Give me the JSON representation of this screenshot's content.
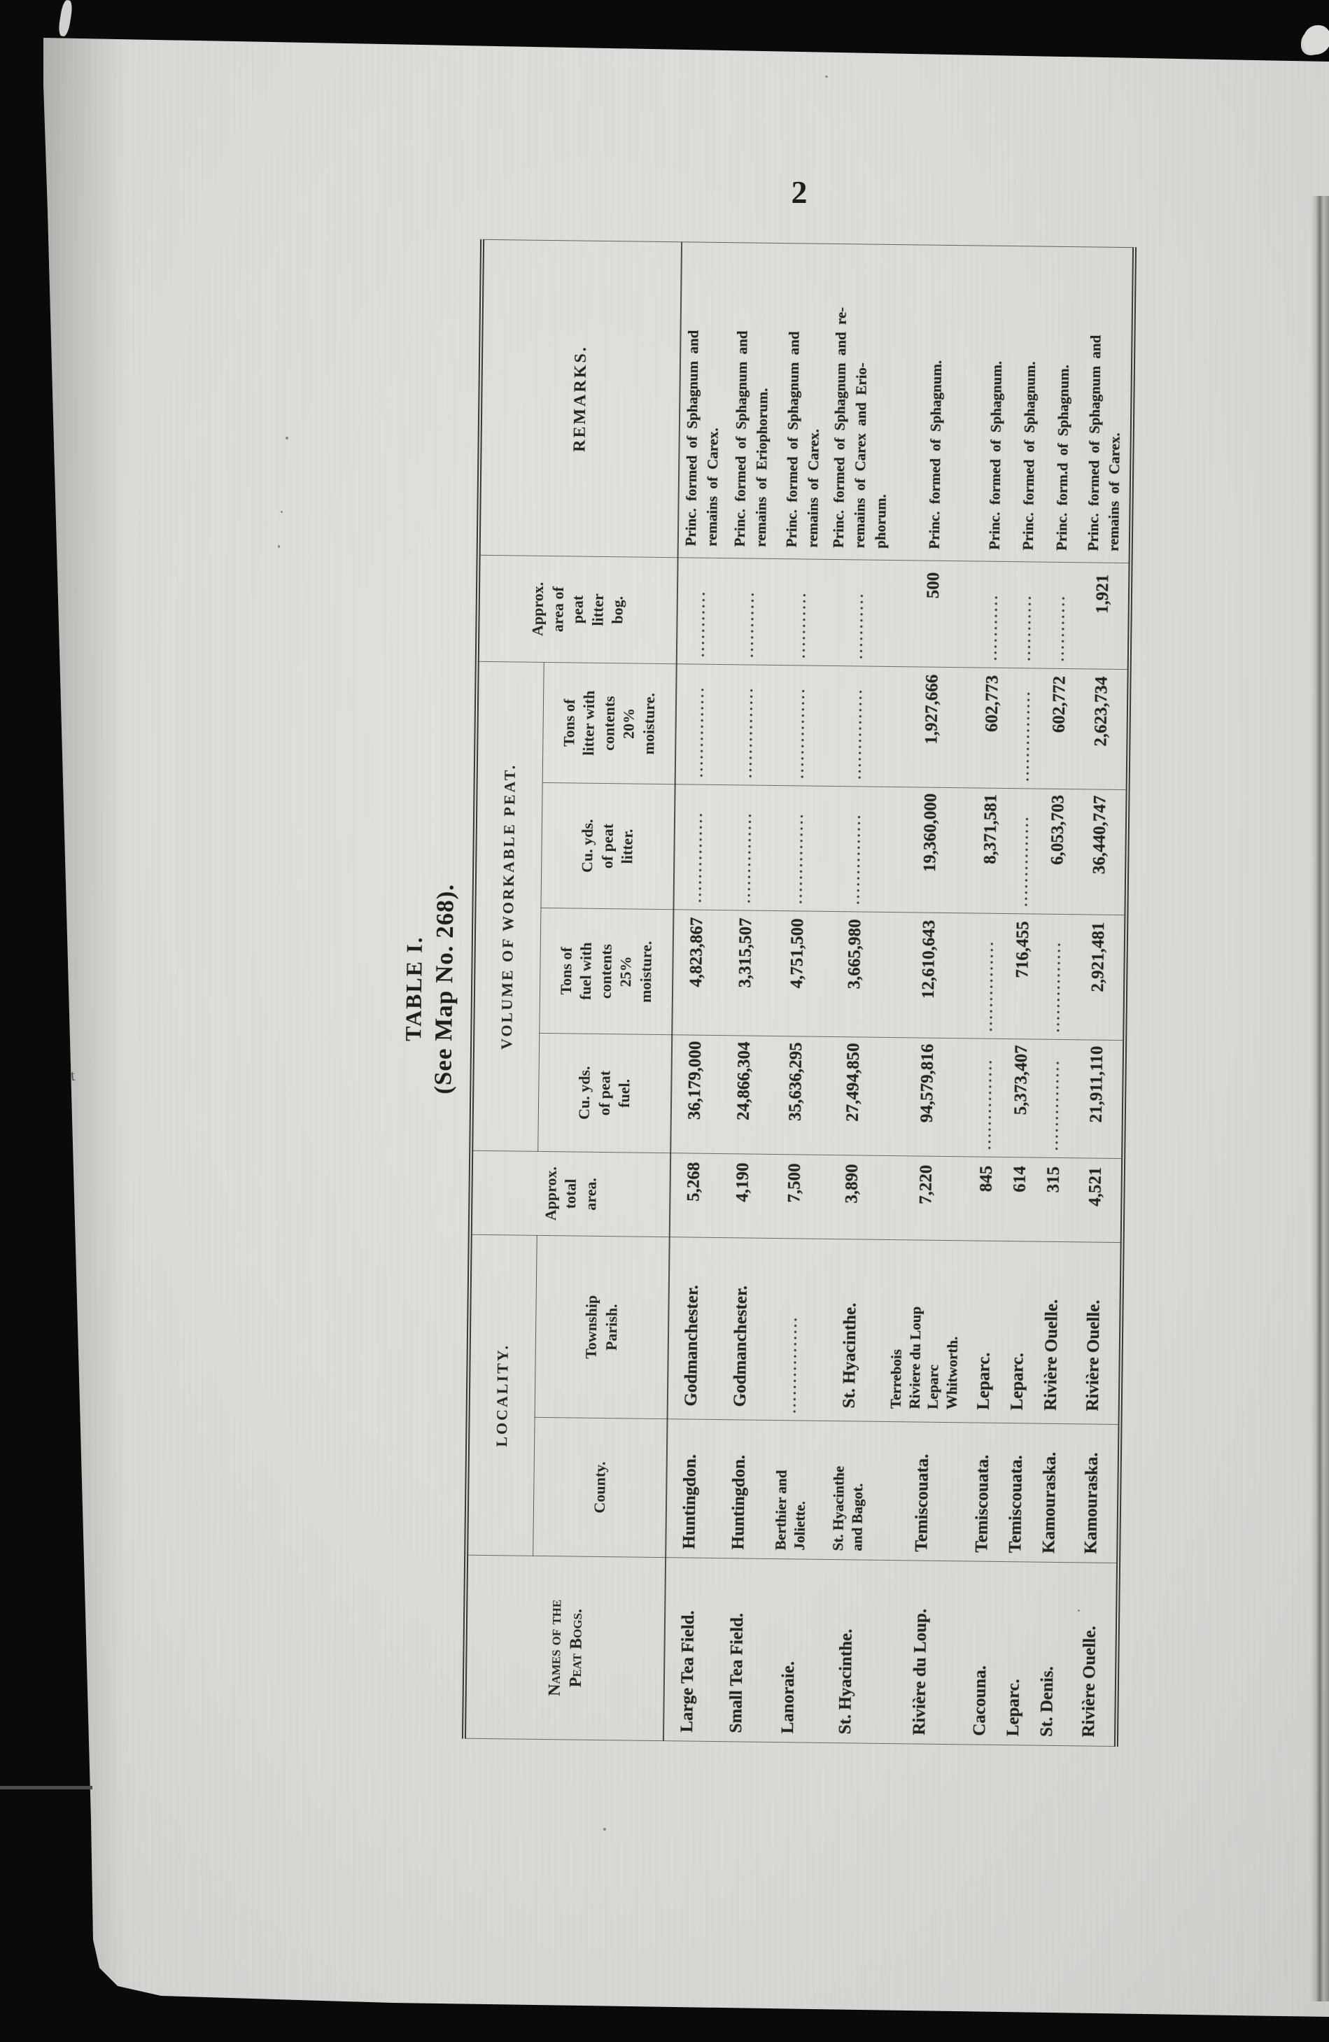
{
  "page": {
    "number": "2"
  },
  "title": {
    "line1": "TABLE I.",
    "line2": "(See Map No. 268)."
  },
  "colors": {
    "paper": "#dcdbd7",
    "ink": "#26231f",
    "scan_background": "#0a0a0a"
  },
  "orientation_note": "table printed rotated 90 degrees counter-clockwise on portrait page",
  "table": {
    "headers": {
      "names": "Names of the\nPeat Bogs.",
      "locality": "LOCALITY.",
      "county": "County.",
      "township": "Township\nParish.",
      "approx_total_area": "Approx.\ntotal\narea.",
      "volume_group": "VOLUME  OF  WORKABLE  PEAT.",
      "cu_yds_fuel": "Cu. yds.\nof peat\nfuel.",
      "tons_fuel": "Tons of\nfuel with\ncontents\n25%\nmoisture.",
      "cu_yds_litter": "Cu. yds.\nof peat\nlitter.",
      "tons_litter": "Tons of\nlitter with\ncontents\n20%\nmoisture.",
      "approx_area_litter": "Approx.\narea  of\npeat\nlitter\nbog.",
      "remarks": "REMARKS."
    },
    "columns": [
      {
        "key": "name"
      },
      {
        "key": "county"
      },
      {
        "key": "township"
      },
      {
        "key": "area"
      },
      {
        "key": "fuel_yds"
      },
      {
        "key": "fuel_tons"
      },
      {
        "key": "litter_yds"
      },
      {
        "key": "litter_tons"
      },
      {
        "key": "litter_area"
      },
      {
        "key": "remarks"
      }
    ],
    "rows": [
      {
        "name": "Large Tea Field.",
        "county": "Huntingdon.",
        "township": "Godmanchester.",
        "area": "5,268",
        "fuel_yds": "36,179,000",
        "fuel_tons": "4,823,867",
        "litter_yds": "...............",
        "litter_tons": "...............",
        "litter_area": "...........",
        "remarks": "Princ. formed of Sphagnum and\nremains of Carex."
      },
      {
        "name": "Small Tea Field.",
        "county": "Huntingdon.",
        "township": "Godmanchester.",
        "area": "4,190",
        "fuel_yds": "24,866,304",
        "fuel_tons": "3,315,507",
        "litter_yds": "...............",
        "litter_tons": "...............",
        "litter_area": "...........",
        "remarks": "Princ. formed of Sphagnum and\nremains of Eriophorum."
      },
      {
        "name": "Lanoraie.",
        "county": "Berthier and\nJoliette.",
        "township": "................",
        "area": "7,500",
        "fuel_yds": "35,636,295",
        "fuel_tons": "4,751,500",
        "litter_yds": "...............",
        "litter_tons": "...............",
        "litter_area": "...........",
        "remarks": "Princ. formed of Sphagnum and\nremains of Carex."
      },
      {
        "name": "St. Hyacinthe.",
        "county": "St.  Hyacinthe\nand Bagot.",
        "township": "St. Hyacinthe.",
        "area": "3,890",
        "fuel_yds": "27,494,850",
        "fuel_tons": "3,665,980",
        "litter_yds": "...............",
        "litter_tons": "...............",
        "litter_area": "...........",
        "remarks": "Princ. formed of Sphagnum and re-\nremains  of  Carex  and  Erio-\nphorum."
      },
      {
        "name": "Rivière du Loup.",
        "county": "Temiscouata.",
        "township": "Terrebois\nRiviere du Loup\nLeparc\nWhitworth.",
        "area": "7,220",
        "fuel_yds": "94,579,816",
        "fuel_tons": "12,610,643",
        "litter_yds": "19,360,000",
        "litter_tons": "1,927,666",
        "litter_area": "500",
        "remarks": "Princ. formed of Sphagnum."
      },
      {
        "name": "Cacouna.",
        "county": "Temiscouata.",
        "township": "Leparc.",
        "area": "845",
        "fuel_yds": "...............",
        "fuel_tons": "...............",
        "litter_yds": "8,371,581",
        "litter_tons": "602,773",
        "litter_area": "...........",
        "remarks": "Princ. formed of Sphagnum."
      },
      {
        "name": "Leparc.",
        "county": "Temiscouata.",
        "township": "Leparc.",
        "area": "614",
        "fuel_yds": "5,373,407",
        "fuel_tons": "716,455",
        "litter_yds": "...............",
        "litter_tons": "...............",
        "litter_area": "...........",
        "remarks": "Princ. formed of Sphagnum."
      },
      {
        "name": "St. Denis.",
        "county": "Kamouraska.",
        "township": "Rivière Ouelle.",
        "area": "315",
        "fuel_yds": "...............",
        "fuel_tons": "...............",
        "litter_yds": "6,053,703",
        "litter_tons": "602,772",
        "litter_area": "...........",
        "remarks": "Princ. form.d of Sphagnum."
      },
      {
        "name": "Rivière Ouelle.",
        "county": "Kamouraska.",
        "township": "Rivière Ouelle.",
        "area": "4,521",
        "fuel_yds": "21,911,110",
        "fuel_tons": "2,921,481",
        "litter_yds": "36,440,747",
        "litter_tons": "2,623,734",
        "litter_area": "1,921",
        "remarks": "Princ. formed of Sphagnum and\nremains of Carex."
      }
    ]
  }
}
